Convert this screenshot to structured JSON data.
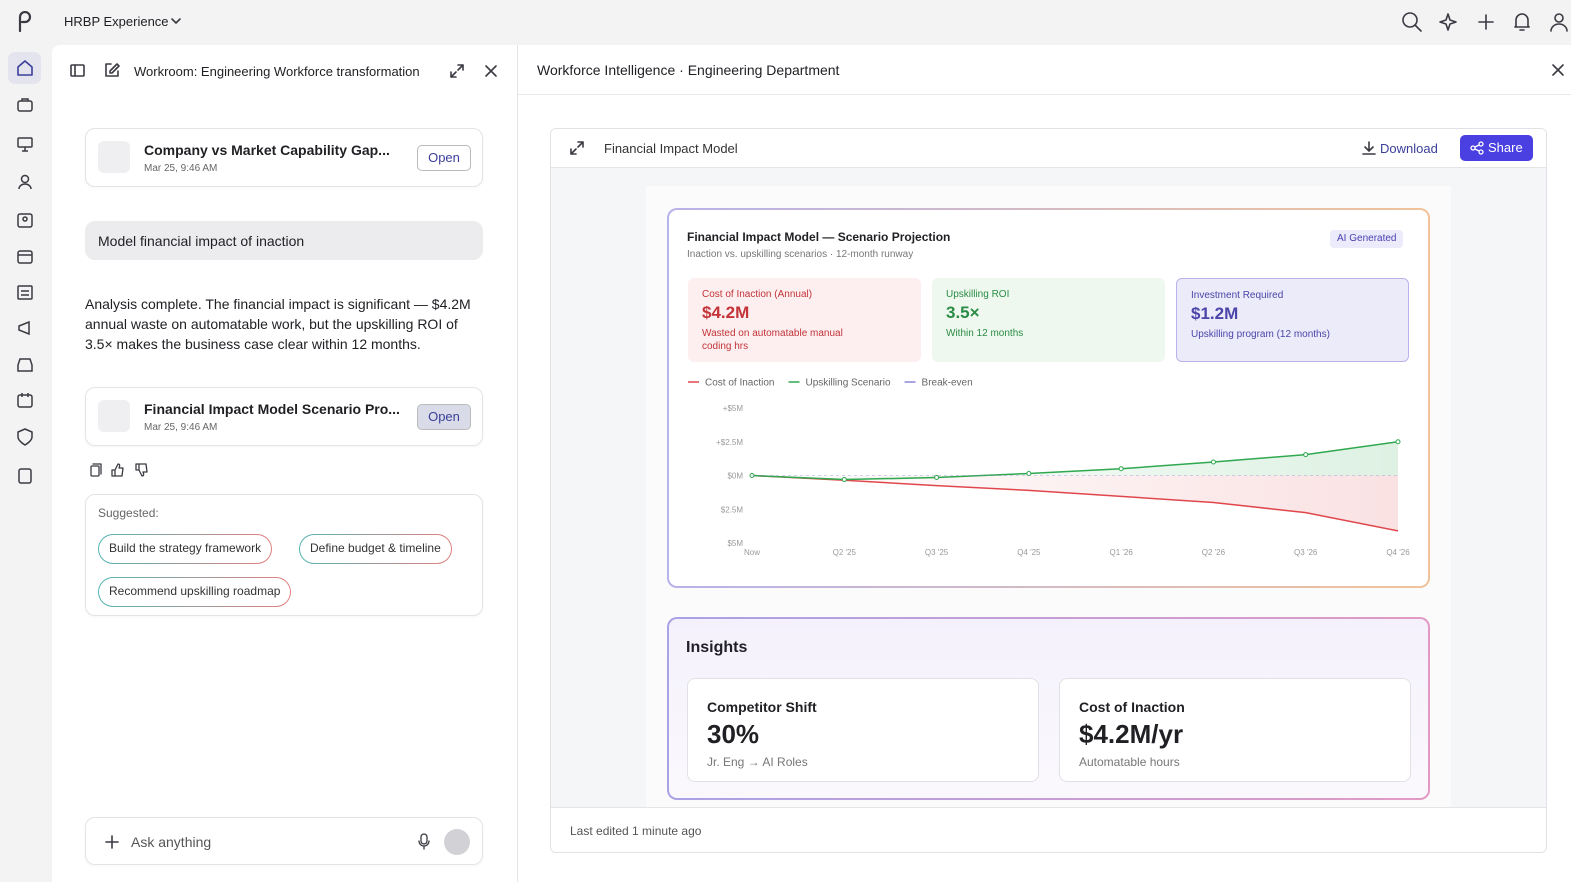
{
  "topbar": {
    "brand": "HRBP Experience"
  },
  "workroom": {
    "title": "Workroom: Engineering Workforce transformation",
    "cards": [
      {
        "title": "Company vs Market Capability Gap...",
        "time": "Mar 25, 9:46 AM",
        "action": "Open"
      },
      {
        "title": "Financial Impact Model Scenario Pro...",
        "time": "Mar 25, 9:46 AM",
        "action": "Open"
      }
    ],
    "prompt": "Model financial impact of inaction",
    "response": "Analysis complete. The financial impact is significant — $4.2M annual waste on automatable work, but the upskilling ROI of 3.5× makes the business case clear within 12 months.",
    "suggested_label": "Suggested:",
    "suggestions": [
      "Build the strategy framework",
      "Define budget & timeline",
      "Recommend upskilling roadmap"
    ],
    "input_placeholder": "Ask anything"
  },
  "panel": {
    "title": "Workforce Intelligence · Engineering Department",
    "doc_title": "Financial Impact Model",
    "download": "Download",
    "share": "Share",
    "footer": "Last edited 1 minute ago"
  },
  "chart_card": {
    "badge": "AI Generated",
    "kpis": [
      {
        "label": "Cost of Inaction (Annual)",
        "value": "$4.2M",
        "note": "Wasted on automatable manual coding hrs"
      },
      {
        "label": "Upskilling ROI",
        "value": "3.5×",
        "note": "Within 12 months"
      },
      {
        "label": "Investment Required",
        "value": "$1.2M",
        "note": "Upskilling program (12 months)"
      }
    ]
  },
  "chart_data": {
    "type": "line",
    "title": "Financial Impact Model — Scenario Projection",
    "subtitle": "Inaction vs. upskilling scenarios · 12-month runway",
    "categories": [
      "Now",
      "Q2 '25",
      "Q3 '25",
      "Q4 '25",
      "Q1 '26",
      "Q2 '26",
      "Q3 '26",
      "Q4 '26"
    ],
    "series": [
      {
        "name": "Cost of Inaction",
        "color": "#e0474c",
        "values": [
          0,
          -0.35,
          -0.75,
          -1.1,
          -1.55,
          -2.0,
          -2.75,
          -4.1
        ]
      },
      {
        "name": "Upskilling Scenario",
        "color": "#2fa84f",
        "values": [
          0,
          -0.3,
          -0.15,
          0.15,
          0.5,
          1.0,
          1.55,
          2.5
        ]
      },
      {
        "name": "Break-even",
        "color": "#8b84d7",
        "values": [
          0,
          0,
          0,
          0,
          0,
          0,
          0,
          0
        ]
      }
    ],
    "ylim": [
      -5,
      5
    ],
    "yticks": [
      {
        "value": 5,
        "label": "+$5M"
      },
      {
        "value": 2.5,
        "label": "+$2.5M"
      },
      {
        "value": 0,
        "label": "$0M"
      },
      {
        "value": -2.5,
        "label": "$2.5M"
      },
      {
        "value": -5,
        "label": "$5M"
      }
    ],
    "grid": false,
    "legend": "top-left"
  },
  "insights": {
    "title": "Insights",
    "cards": [
      {
        "label": "Competitor Shift",
        "value": "30%",
        "note": "Jr. Eng → AI Roles"
      },
      {
        "label": "Cost of Inaction",
        "value": "$4.2M/yr",
        "note": "Automatable hours"
      }
    ]
  }
}
